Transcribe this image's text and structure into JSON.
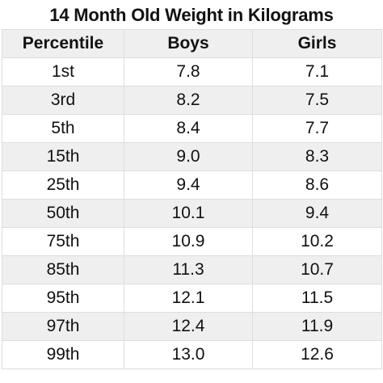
{
  "title": "14 Month Old Weight in Kilograms",
  "columns": [
    "Percentile",
    "Boys",
    "Girls"
  ],
  "rows": [
    {
      "percentile": "1st",
      "boys": "7.8",
      "girls": "7.1"
    },
    {
      "percentile": "3rd",
      "boys": "8.2",
      "girls": "7.5"
    },
    {
      "percentile": "5th",
      "boys": "8.4",
      "girls": "7.7"
    },
    {
      "percentile": "15th",
      "boys": "9.0",
      "girls": "8.3"
    },
    {
      "percentile": "25th",
      "boys": "9.4",
      "girls": "8.6"
    },
    {
      "percentile": "50th",
      "boys": "10.1",
      "girls": "9.4"
    },
    {
      "percentile": "75th",
      "boys": "10.9",
      "girls": "10.2"
    },
    {
      "percentile": "85th",
      "boys": "11.3",
      "girls": "10.7"
    },
    {
      "percentile": "95th",
      "boys": "12.1",
      "girls": "11.5"
    },
    {
      "percentile": "97th",
      "boys": "12.4",
      "girls": "11.9"
    },
    {
      "percentile": "99th",
      "boys": "13.0",
      "girls": "12.6"
    }
  ],
  "colors": {
    "shaded_row": "#efefef",
    "border": "#dedede",
    "text": "#111111"
  }
}
